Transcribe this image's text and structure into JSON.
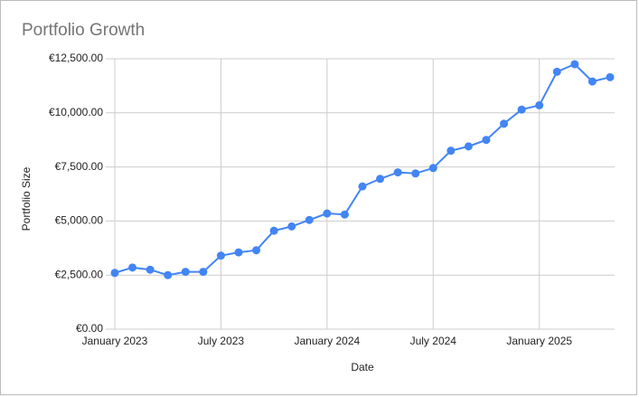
{
  "chart_data": {
    "type": "line",
    "title": "Portfolio Growth",
    "x_label": "Date",
    "y_label": "Portfolio Size",
    "x": [
      "2023-01",
      "2023-02",
      "2023-03",
      "2023-04",
      "2023-05",
      "2023-06",
      "2023-07",
      "2023-08",
      "2023-09",
      "2023-10",
      "2023-11",
      "2023-12",
      "2024-01",
      "2024-02",
      "2024-03",
      "2024-04",
      "2024-05",
      "2024-06",
      "2024-07",
      "2024-08",
      "2024-09",
      "2024-10",
      "2024-11",
      "2024-12",
      "2025-01",
      "2025-02",
      "2025-03",
      "2025-04",
      "2025-05"
    ],
    "values": [
      2600,
      2850,
      2750,
      2500,
      2650,
      2650,
      3400,
      3550,
      3650,
      4550,
      4750,
      5050,
      5350,
      5300,
      6600,
      6950,
      7250,
      7200,
      7450,
      8250,
      8450,
      8750,
      9500,
      10150,
      10350,
      11900,
      12250,
      11450,
      11650
    ],
    "color": "#4285f4",
    "xlim": [
      "2023-01",
      "2025-05"
    ],
    "xticks": [
      {
        "value": "2023-01",
        "label": "January 2023"
      },
      {
        "value": "2023-07",
        "label": "July 2023"
      },
      {
        "value": "2024-01",
        "label": "January 2024"
      },
      {
        "value": "2024-07",
        "label": "July 2024"
      },
      {
        "value": "2025-01",
        "label": "January 2025"
      }
    ],
    "ylim": [
      0,
      12500
    ],
    "yticks": [
      {
        "value": 0,
        "label": "€0.00"
      },
      {
        "value": 2500,
        "label": "€2,500.00"
      },
      {
        "value": 5000,
        "label": "€5,000.00"
      },
      {
        "value": 7500,
        "label": "€7,500.00"
      },
      {
        "value": 10000,
        "label": "€10,000.00"
      },
      {
        "value": 12500,
        "label": "€12,500.00"
      }
    ],
    "grid": true
  }
}
